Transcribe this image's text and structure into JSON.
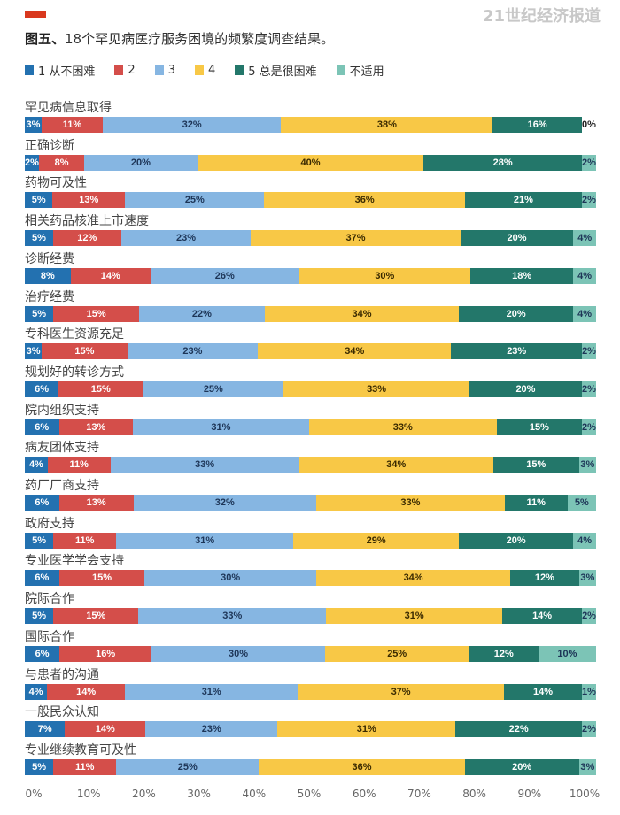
{
  "title_bold": "图五、",
  "title_text": "18个罕见病医疗服务困境的频繁度调查结果。",
  "watermark": "21世纪经济报道",
  "chart_data": {
    "type": "bar",
    "orientation": "horizontal-stacked-100",
    "title": "图五、18个罕见病医疗服务困境的频繁度调查结果。",
    "series_names": [
      "1 从不困难",
      "2",
      "3",
      "4",
      "5 总是很困难",
      "不适用"
    ],
    "colors": [
      "#2371b0",
      "#d44e4a",
      "#86b6e2",
      "#f8c846",
      "#23776a",
      "#7cc4b6"
    ],
    "label_colors": [
      "#ffffff",
      "#ffffff",
      "#1d3557",
      "#3a2a00",
      "#ffffff",
      "#1d3557"
    ],
    "categories": [
      "罕见病信息取得",
      "正确诊断",
      "药物可及性",
      "相关药品核准上市速度",
      "诊断经费",
      "治疗经费",
      "专科医生资源充足",
      "规划好的转诊方式",
      "院内组织支持",
      "病友团体支持",
      "药厂厂商支持",
      "政府支持",
      "专业医学学会支持",
      "院际合作",
      "国际合作",
      "与患者的沟通",
      "一般民众认知",
      "专业继续教育可及性"
    ],
    "values": [
      [
        3,
        11,
        32,
        38,
        16,
        0
      ],
      [
        2,
        8,
        20,
        40,
        28,
        2
      ],
      [
        5,
        13,
        25,
        36,
        21,
        2
      ],
      [
        5,
        12,
        23,
        37,
        20,
        4
      ],
      [
        8,
        14,
        26,
        30,
        18,
        4
      ],
      [
        5,
        15,
        22,
        34,
        20,
        4
      ],
      [
        3,
        15,
        23,
        34,
        23,
        2
      ],
      [
        6,
        15,
        25,
        33,
        20,
        2
      ],
      [
        6,
        13,
        31,
        33,
        15,
        2
      ],
      [
        4,
        11,
        33,
        34,
        15,
        3
      ],
      [
        6,
        13,
        32,
        33,
        11,
        5
      ],
      [
        5,
        11,
        31,
        29,
        20,
        4
      ],
      [
        6,
        15,
        30,
        34,
        12,
        3
      ],
      [
        5,
        15,
        33,
        31,
        14,
        2
      ],
      [
        6,
        16,
        30,
        25,
        12,
        10
      ],
      [
        4,
        14,
        31,
        37,
        14,
        1
      ],
      [
        7,
        14,
        23,
        31,
        22,
        2
      ],
      [
        5,
        11,
        25,
        36,
        20,
        3
      ]
    ],
    "x_ticks": [
      "0%",
      "10%",
      "20%",
      "30%",
      "40%",
      "50%",
      "60%",
      "70%",
      "80%",
      "90%",
      "100%"
    ],
    "xlim": [
      0,
      100
    ],
    "legend": "top"
  }
}
